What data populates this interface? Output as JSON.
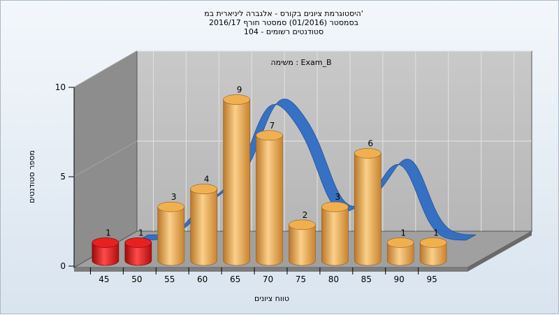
{
  "chart_data": {
    "type": "bar",
    "title_lines": [
      "היסטוגרמת ציונים בקורס - אלגברה ליניארית במ'",
      "בסמסטר  (01/2016)  סמסטר חורף 2016/17",
      "סטודנטים רשומים - 104"
    ],
    "subtitle": "משימה : Exam_B",
    "xlabel": "טווח ציונים",
    "ylabel": "מספר סטודנטים",
    "ylim": [
      0,
      10
    ],
    "yticks": [
      0,
      5,
      10
    ],
    "categories": [
      "45",
      "50",
      "55",
      "60",
      "65",
      "70",
      "75",
      "80",
      "85",
      "90",
      "95"
    ],
    "values": [
      1,
      1,
      3,
      4,
      9,
      7,
      2,
      3,
      6,
      1,
      1
    ],
    "bar_colors": [
      "#e82020",
      "#e82020",
      "#f0b050",
      "#f0b050",
      "#f0b050",
      "#f0b050",
      "#f0b050",
      "#f0b050",
      "#f0b050",
      "#f0b050",
      "#f0b050"
    ],
    "curve_color": "#2f6dc4",
    "curve_description": "smoothed frequency curve, blue ribbon",
    "grid": true
  }
}
